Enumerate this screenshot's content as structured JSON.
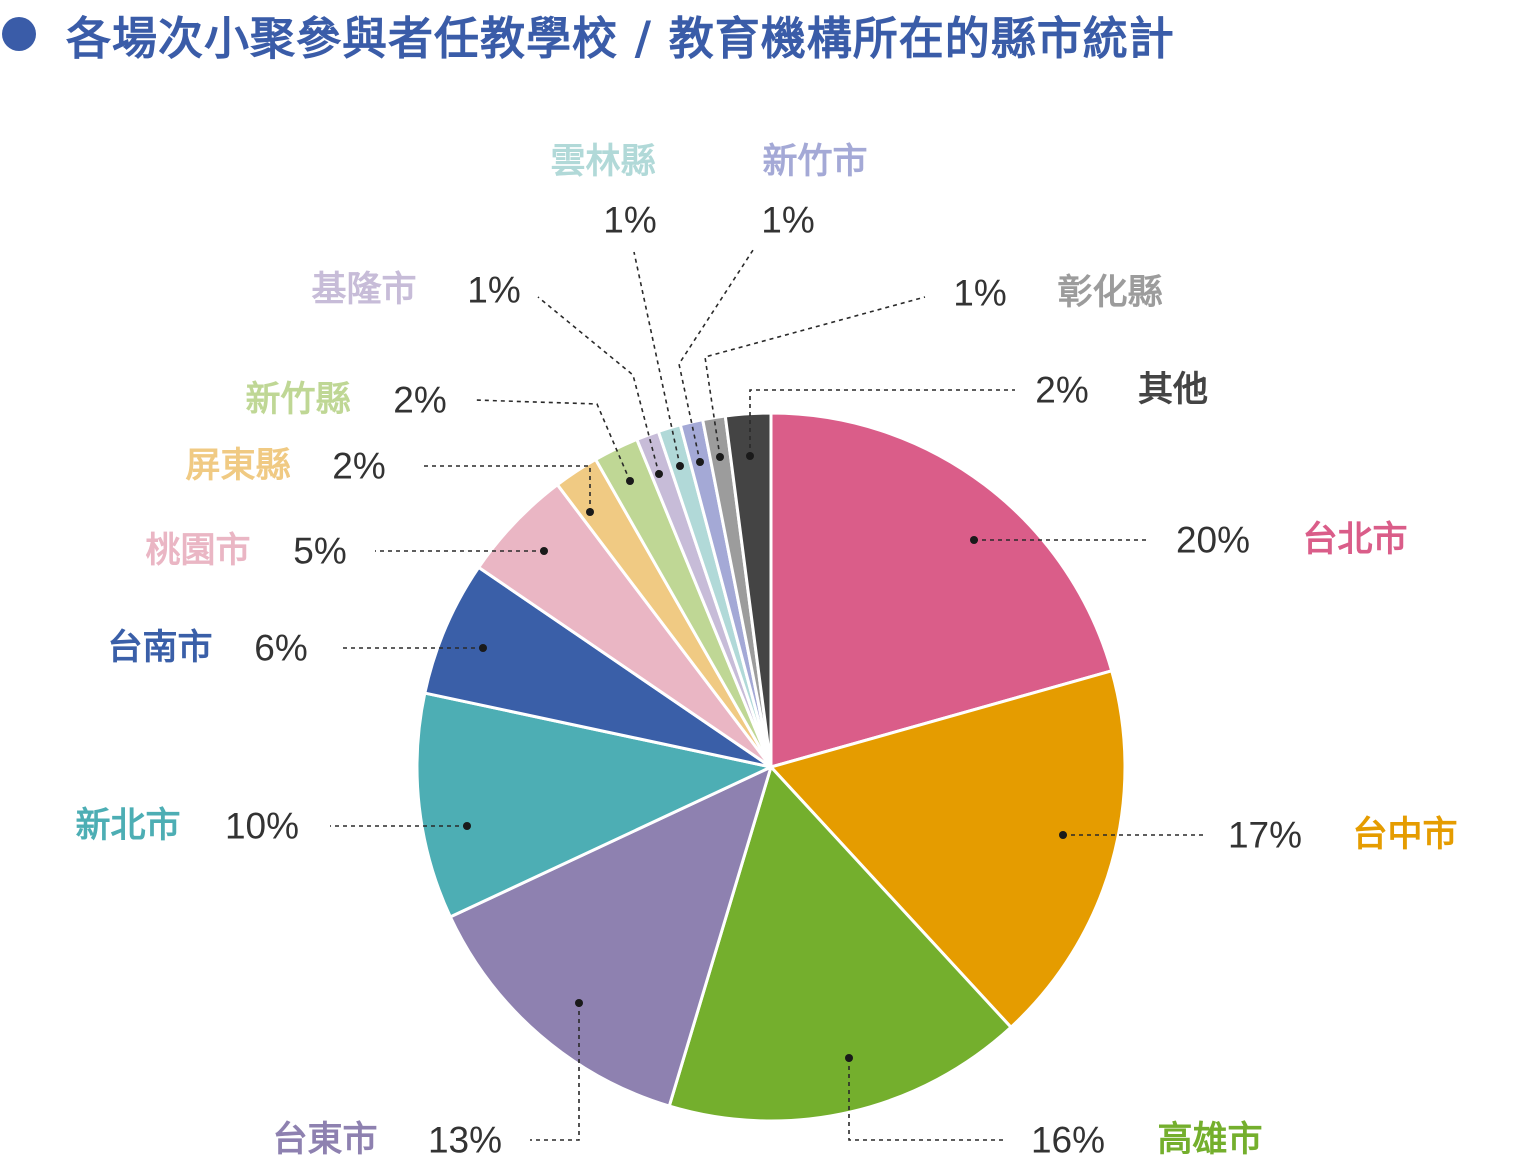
{
  "chart_data": {
    "type": "pie",
    "title": "各場次小聚參與者任教學校 / 教育機構所在的縣市統計",
    "legend": "callout-labels",
    "unit": "%",
    "slices": [
      {
        "name": "台北市",
        "value": 20,
        "label": "20%",
        "color": "#da5d89"
      },
      {
        "name": "台中市",
        "value": 17,
        "label": "17%",
        "color": "#e59c00"
      },
      {
        "name": "高雄市",
        "value": 16,
        "label": "16%",
        "color": "#74af2d"
      },
      {
        "name": "台東市",
        "value": 13,
        "label": "13%",
        "color": "#8e81b0"
      },
      {
        "name": "新北市",
        "value": 10,
        "label": "10%",
        "color": "#4daeb4"
      },
      {
        "name": "台南市",
        "value": 6,
        "label": "6%",
        "color": "#3a5fa8"
      },
      {
        "name": "桃園市",
        "value": 5,
        "label": "5%",
        "color": "#eab6c4"
      },
      {
        "name": "屏東縣",
        "value": 2,
        "label": "2%",
        "color": "#f0ca83"
      },
      {
        "name": "新竹縣",
        "value": 2,
        "label": "2%",
        "color": "#bfd795"
      },
      {
        "name": "基隆市",
        "value": 1,
        "label": "1%",
        "color": "#c7bcd8"
      },
      {
        "name": "雲林縣",
        "value": 1,
        "label": "1%",
        "color": "#b1d9d8"
      },
      {
        "name": "新竹市",
        "value": 1,
        "label": "1%",
        "color": "#a4a9d6"
      },
      {
        "name": "彰化縣",
        "value": 1,
        "label": "1%",
        "color": "#9c9c9c"
      },
      {
        "name": "其他",
        "value": 2,
        "label": "2%",
        "color": "#444444"
      }
    ]
  },
  "colors": {
    "title": "#3a5ca8",
    "percent_text": "#333333",
    "leader_line": "#2a2a2a"
  }
}
